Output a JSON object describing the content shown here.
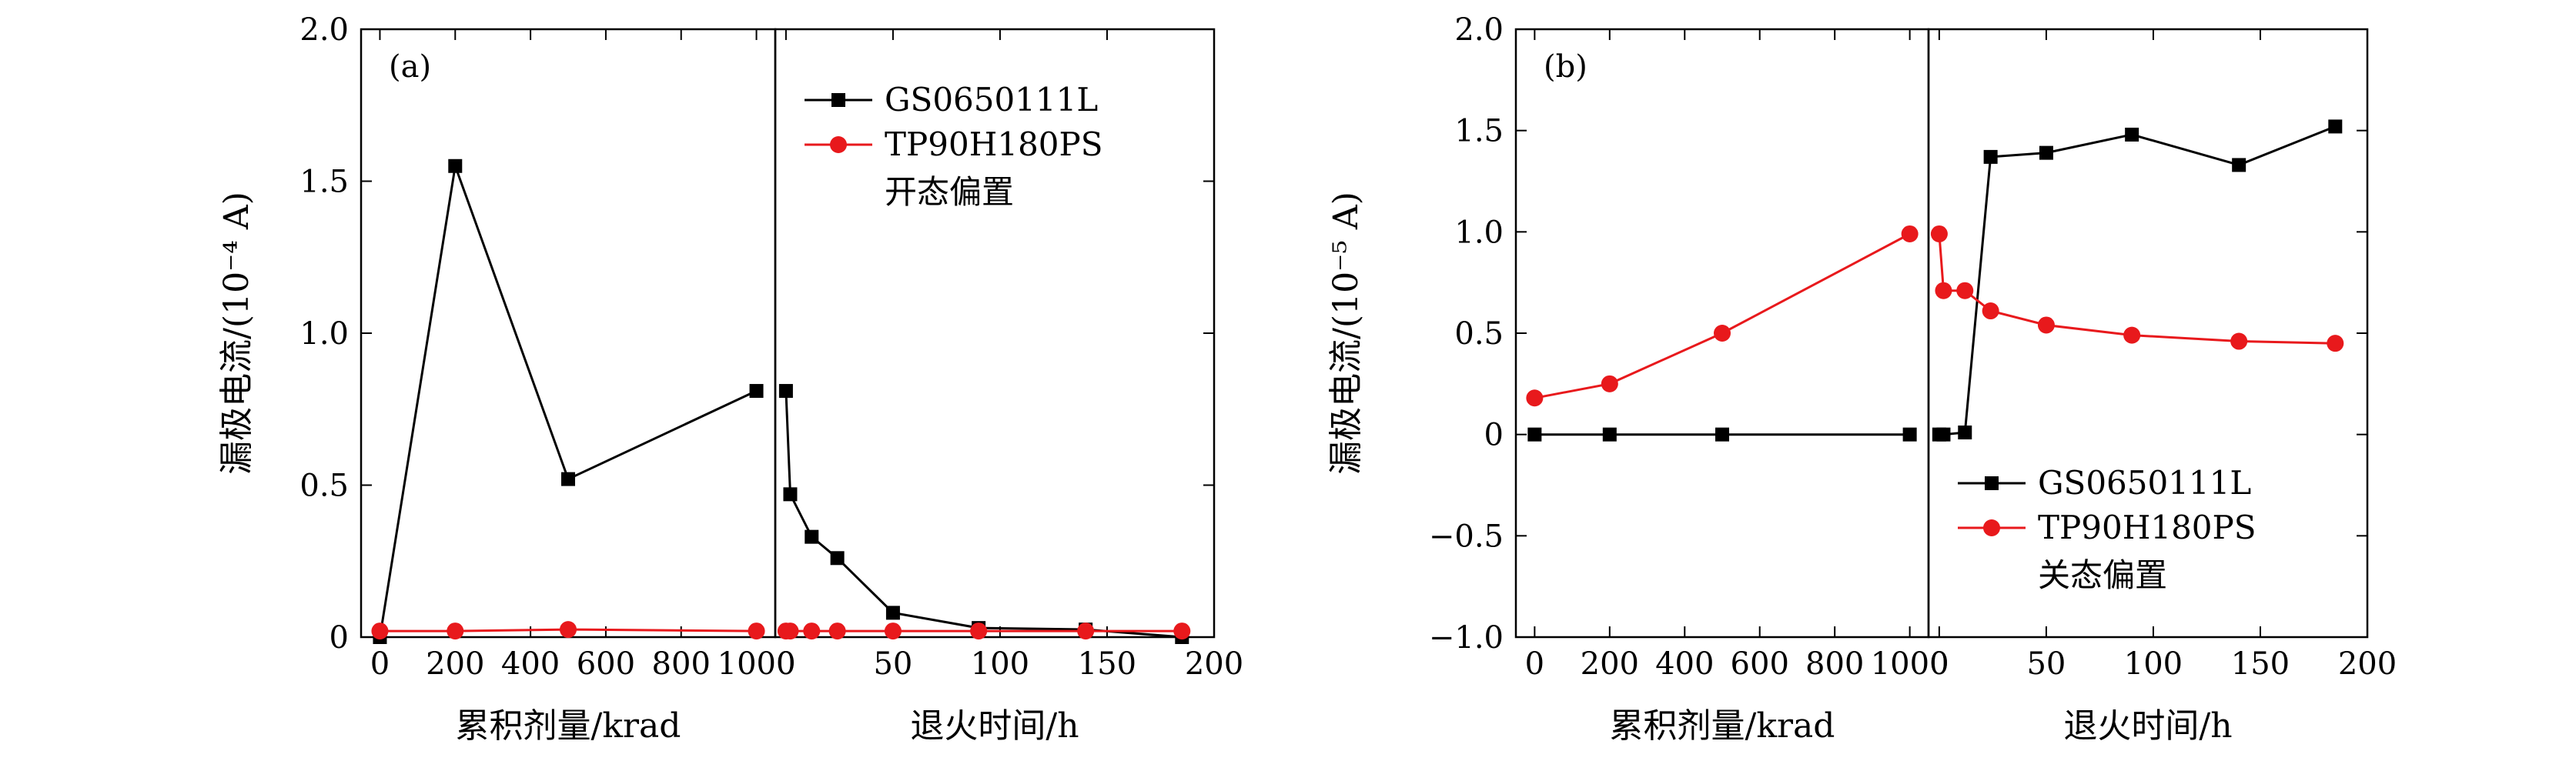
{
  "chart_data": [
    {
      "type": "line",
      "panel_label": "(a)",
      "ylabel": "漏极电流/(10⁻⁴ A)",
      "ylim": [
        0,
        2.0
      ],
      "yticks": [
        "0",
        "0.5",
        "1.0",
        "1.5",
        "2.0"
      ],
      "yticks_values": [
        0,
        0.5,
        1.0,
        1.5,
        2.0
      ],
      "legend": {
        "position": "top-right",
        "entries": [
          "GS0650111L",
          "TP90H180PS"
        ],
        "note": "开态偏置"
      },
      "subplots": [
        {
          "xlabel": "累积剂量/krad",
          "xlim": [
            -50,
            1050
          ],
          "xticks": [
            "0",
            "200",
            "400",
            "600",
            "800",
            "1000"
          ],
          "xticks_values": [
            0,
            200,
            400,
            600,
            800,
            1000
          ],
          "series": [
            {
              "name": "GS0650111L",
              "color": "#000000",
              "marker": "square",
              "x": [
                0,
                200,
                500,
                1000
              ],
              "y": [
                0.0,
                1.55,
                0.52,
                0.81
              ]
            },
            {
              "name": "TP90H180PS",
              "color": "#e8191c",
              "marker": "circle",
              "x": [
                0,
                200,
                500,
                1000
              ],
              "y": [
                0.02,
                0.02,
                0.025,
                0.02
              ]
            }
          ]
        },
        {
          "xlabel": "退火时间/h",
          "xlim": [
            -5,
            200
          ],
          "xticks": [
            "0",
            "50",
            "100",
            "150",
            "200"
          ],
          "xticks_values": [
            0,
            50,
            100,
            150,
            200
          ],
          "series": [
            {
              "name": "GS0650111L",
              "color": "#000000",
              "marker": "square",
              "x": [
                0,
                2,
                12,
                24,
                50,
                90,
                140,
                185
              ],
              "y": [
                0.81,
                0.47,
                0.33,
                0.26,
                0.08,
                0.03,
                0.025,
                0.0
              ]
            },
            {
              "name": "TP90H180PS",
              "color": "#e8191c",
              "marker": "circle",
              "x": [
                0,
                2,
                12,
                24,
                50,
                90,
                140,
                185
              ],
              "y": [
                0.02,
                0.02,
                0.02,
                0.02,
                0.02,
                0.02,
                0.02,
                0.02
              ]
            }
          ]
        }
      ]
    },
    {
      "type": "line",
      "panel_label": "(b)",
      "ylabel": "漏极电流/(10⁻⁵ A)",
      "ylim": [
        -1.0,
        2.0
      ],
      "yticks": [
        "−1.0",
        "−0.5",
        "0",
        "0.5",
        "1.0",
        "1.5",
        "2.0"
      ],
      "yticks_values": [
        -1.0,
        -0.5,
        0,
        0.5,
        1.0,
        1.5,
        2.0
      ],
      "legend": {
        "position": "bottom-right",
        "entries": [
          "GS0650111L",
          "TP90H180PS"
        ],
        "note": "关态偏置"
      },
      "subplots": [
        {
          "xlabel": "累积剂量/krad",
          "xlim": [
            -50,
            1050
          ],
          "xticks": [
            "0",
            "200",
            "400",
            "600",
            "800",
            "1000"
          ],
          "xticks_values": [
            0,
            200,
            400,
            600,
            800,
            1000
          ],
          "series": [
            {
              "name": "GS0650111L",
              "color": "#000000",
              "marker": "square",
              "x": [
                0,
                200,
                500,
                1000
              ],
              "y": [
                0.0,
                0.0,
                0.0,
                0.0
              ]
            },
            {
              "name": "TP90H180PS",
              "color": "#e8191c",
              "marker": "circle",
              "x": [
                0,
                200,
                500,
                1000
              ],
              "y": [
                0.18,
                0.25,
                0.5,
                0.99
              ]
            }
          ]
        },
        {
          "xlabel": "退火时间/h",
          "xlim": [
            -5,
            200
          ],
          "xticks": [
            "0",
            "50",
            "100",
            "150",
            "200"
          ],
          "xticks_values": [
            0,
            50,
            100,
            150,
            200
          ],
          "series": [
            {
              "name": "GS0650111L",
              "color": "#000000",
              "marker": "square",
              "x": [
                0,
                2,
                12,
                24,
                50,
                90,
                140,
                185
              ],
              "y": [
                0.0,
                0.0,
                0.01,
                1.37,
                1.39,
                1.48,
                1.33,
                1.52
              ]
            },
            {
              "name": "TP90H180PS",
              "color": "#e8191c",
              "marker": "circle",
              "x": [
                0,
                2,
                12,
                24,
                50,
                90,
                140,
                185
              ],
              "y": [
                0.99,
                0.71,
                0.71,
                0.61,
                0.54,
                0.49,
                0.46,
                0.45
              ]
            }
          ]
        }
      ]
    }
  ]
}
